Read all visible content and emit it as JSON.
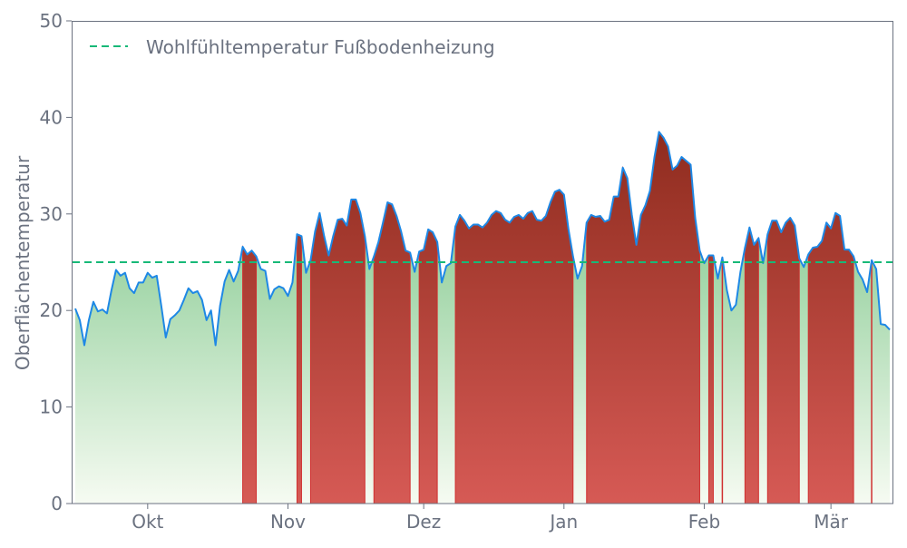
{
  "chart_data": {
    "type": "area",
    "title": "",
    "xlabel": "",
    "ylabel": "Oberflächentemperatur",
    "ylim": [
      0,
      50
    ],
    "yticks": [
      0,
      10,
      20,
      30,
      40,
      50
    ],
    "xticks": [
      {
        "date": "10-01",
        "label": "Okt"
      },
      {
        "date": "11-01",
        "label": "Nov"
      },
      {
        "date": "12-01",
        "label": "Dez"
      },
      {
        "date": "01-01",
        "label": "Jan"
      },
      {
        "date": "02-01",
        "label": "Feb"
      },
      {
        "date": "03-01",
        "label": "Mär"
      }
    ],
    "grid": false,
    "legend_position": "top-left",
    "threshold": {
      "name": "Wohlfühltemperatur Fußbodenheizung",
      "value": 25,
      "style": "dashed"
    },
    "colors": {
      "line": "#1e88e5",
      "threshold": "#17b978",
      "above_top": "#8c2a1c",
      "above_bottom": "#d65a55",
      "above_edge": "#d03030",
      "below_top": "#6dbf7b",
      "below_bottom": "#f6fbf2",
      "axis": "#6b7280"
    },
    "x": [
      "09-15",
      "09-16",
      "09-17",
      "09-18",
      "09-19",
      "09-20",
      "09-21",
      "09-22",
      "09-23",
      "09-24",
      "09-25",
      "09-26",
      "09-27",
      "09-28",
      "09-29",
      "09-30",
      "10-01",
      "10-02",
      "10-03",
      "10-04",
      "10-05",
      "10-06",
      "10-07",
      "10-08",
      "10-09",
      "10-10",
      "10-11",
      "10-12",
      "10-13",
      "10-14",
      "10-15",
      "10-16",
      "10-17",
      "10-18",
      "10-19",
      "10-20",
      "10-21",
      "10-22",
      "10-23",
      "10-24",
      "10-25",
      "10-26",
      "10-27",
      "10-28",
      "10-29",
      "10-30",
      "10-31",
      "11-01",
      "11-02",
      "11-03",
      "11-04",
      "11-05",
      "11-06",
      "11-07",
      "11-08",
      "11-09",
      "11-10",
      "11-11",
      "11-12",
      "11-13",
      "11-14",
      "11-15",
      "11-16",
      "11-17",
      "11-18",
      "11-19",
      "11-20",
      "11-21",
      "11-22",
      "11-23",
      "11-24",
      "11-25",
      "11-26",
      "11-27",
      "11-28",
      "11-29",
      "11-30",
      "12-01",
      "12-02",
      "12-03",
      "12-04",
      "12-05",
      "12-06",
      "12-07",
      "12-08",
      "12-09",
      "12-10",
      "12-11",
      "12-12",
      "12-13",
      "12-14",
      "12-15",
      "12-16",
      "12-17",
      "12-18",
      "12-19",
      "12-20",
      "12-21",
      "12-22",
      "12-23",
      "12-24",
      "12-25",
      "12-26",
      "12-27",
      "12-28",
      "12-29",
      "12-30",
      "12-31",
      "01-01",
      "01-02",
      "01-03",
      "01-04",
      "01-05",
      "01-06",
      "01-07",
      "01-08",
      "01-09",
      "01-10",
      "01-11",
      "01-12",
      "01-13",
      "01-14",
      "01-15",
      "01-16",
      "01-17",
      "01-18",
      "01-19",
      "01-20",
      "01-21",
      "01-22",
      "01-23",
      "01-24",
      "01-25",
      "01-26",
      "01-27",
      "01-28",
      "01-29",
      "01-30",
      "01-31",
      "02-01",
      "02-02",
      "02-03",
      "02-04",
      "02-05",
      "02-06",
      "02-07",
      "02-08",
      "02-09",
      "02-10",
      "02-11",
      "02-12",
      "02-13",
      "02-14",
      "02-15",
      "02-16",
      "02-17",
      "02-18",
      "02-19",
      "02-20",
      "02-21",
      "02-22",
      "02-23",
      "02-24",
      "02-25",
      "02-26",
      "02-27",
      "02-28",
      "03-01",
      "03-02",
      "03-03",
      "03-04",
      "03-05",
      "03-06",
      "03-07",
      "03-08",
      "03-09",
      "03-10",
      "03-11",
      "03-12",
      "03-13",
      "03-14"
    ],
    "values": [
      20.2,
      19.0,
      16.4,
      19.0,
      20.9,
      19.9,
      20.1,
      19.7,
      22.1,
      24.2,
      23.6,
      23.9,
      22.3,
      21.8,
      22.9,
      22.9,
      23.9,
      23.4,
      23.6,
      20.5,
      17.2,
      19.1,
      19.5,
      20.0,
      21.1,
      22.3,
      21.8,
      22.0,
      21.1,
      19.0,
      20.0,
      16.4,
      20.5,
      23.0,
      24.2,
      23.0,
      24.1,
      26.6,
      25.8,
      26.2,
      25.6,
      24.3,
      24.1,
      21.2,
      22.2,
      22.5,
      22.3,
      21.5,
      22.9,
      27.9,
      27.7,
      23.9,
      25.2,
      28.2,
      30.1,
      27.7,
      25.7,
      27.7,
      29.4,
      29.5,
      28.8,
      31.5,
      31.5,
      30.1,
      27.7,
      24.3,
      25.6,
      27.1,
      29.1,
      31.2,
      31.0,
      29.8,
      28.2,
      26.2,
      26.0,
      24.0,
      26.1,
      26.3,
      28.4,
      28.1,
      27.1,
      22.9,
      24.6,
      24.9,
      28.7,
      29.9,
      29.3,
      28.5,
      28.9,
      28.9,
      28.6,
      29.1,
      29.9,
      30.3,
      30.1,
      29.4,
      29.1,
      29.7,
      29.9,
      29.5,
      30.1,
      30.3,
      29.4,
      29.3,
      29.8,
      31.2,
      32.3,
      32.5,
      32.0,
      28.4,
      25.6,
      23.3,
      24.6,
      29.1,
      29.9,
      29.7,
      29.8,
      29.2,
      29.4,
      31.8,
      31.8,
      34.8,
      33.7,
      29.9,
      26.8,
      29.9,
      30.9,
      32.4,
      35.9,
      38.5,
      37.9,
      37.0,
      34.6,
      35.0,
      35.9,
      35.5,
      35.1,
      29.6,
      26.2,
      24.9,
      25.7,
      25.7,
      23.3,
      25.5,
      22.1,
      20.0,
      20.6,
      24.0,
      26.5,
      28.6,
      26.8,
      27.5,
      24.9,
      27.9,
      29.3,
      29.3,
      28.1,
      29.1,
      29.6,
      28.8,
      25.4,
      24.5,
      25.8,
      26.5,
      26.6,
      27.2,
      29.1,
      28.5,
      30.1,
      29.8,
      26.3,
      26.3,
      25.6,
      24.0,
      23.2,
      21.9,
      25.2,
      24.3,
      18.6,
      18.5,
      18.0
    ]
  }
}
